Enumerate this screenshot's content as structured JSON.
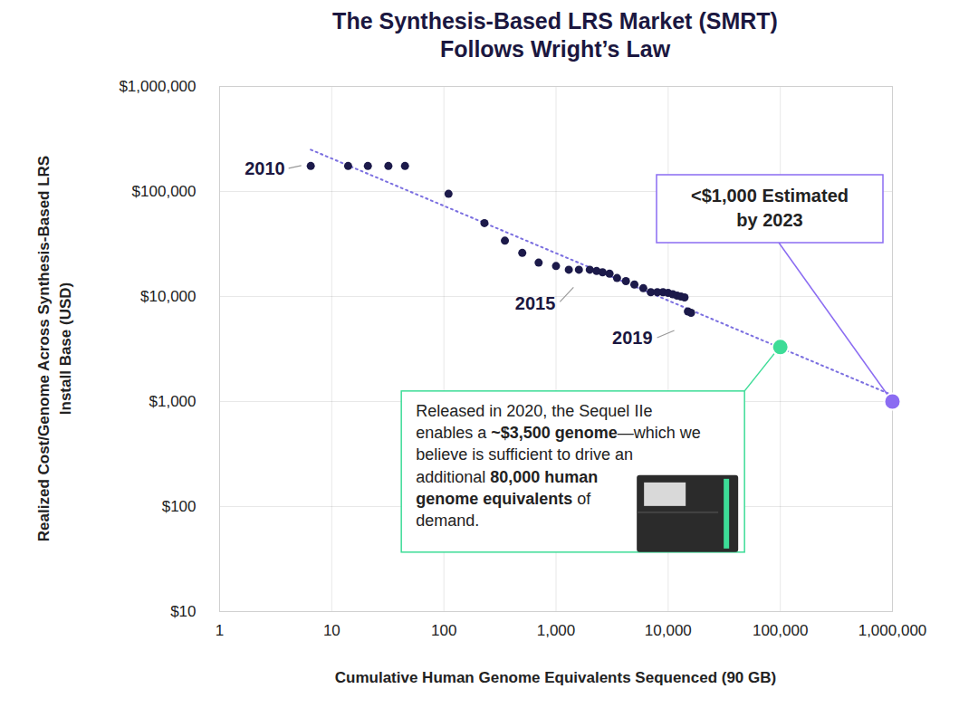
{
  "chart_data": {
    "type": "scatter",
    "title": "The Synthesis-Based LRS Market (SMRT) Follows Wright’s Law",
    "x_label": "Cumulative Human Genome Equivalents Sequenced (90 GB)",
    "y_label": "Realized Cost/Genome Across Synthesis-Based LRS Install Base (USD)",
    "log": true,
    "grid": true,
    "xlim": [
      1,
      1000000
    ],
    "ylim": [
      10,
      1000000
    ],
    "xticks": [
      1,
      10,
      100,
      {
        "value": 1000,
        "label": "1,000"
      },
      {
        "value": 10000,
        "label": "10,000"
      },
      {
        "value": 100000,
        "label": "100,000"
      },
      {
        "value": 1000000,
        "label": "1,000,000"
      }
    ],
    "yticks": [
      {
        "value": 10,
        "label": "$10"
      },
      {
        "value": 100,
        "label": "$100"
      },
      {
        "value": 1000,
        "label": "$1,000"
      },
      {
        "value": 10000,
        "label": "$10,000"
      },
      {
        "value": 100000,
        "label": "$100,000"
      },
      {
        "value": 1000000,
        "label": "$1,000,000"
      }
    ],
    "series": [
      {
        "type": "line",
        "line_style": "dotted",
        "color": "#7b6fe0",
        "x": [
          6.5,
          1000000
        ],
        "values": [
          250000,
          1150
        ]
      },
      {
        "type": "scatter",
        "marker": "circle",
        "color": "#1c1a4a",
        "x": [
          6.5,
          14,
          21,
          32,
          45,
          110,
          230,
          350,
          500,
          700,
          1000,
          1300,
          1600,
          2000,
          2300,
          2600,
          3000,
          3500,
          4200,
          5000,
          6000,
          7000,
          8000,
          9000,
          10000,
          11000,
          12000,
          13000,
          14000,
          15000,
          16000
        ],
        "values": [
          175000,
          175000,
          175000,
          175000,
          175000,
          95000,
          50000,
          34000,
          26000,
          21000,
          19500,
          18000,
          18000,
          18000,
          17500,
          17000,
          16500,
          15000,
          14000,
          13000,
          12000,
          11000,
          11000,
          11000,
          10800,
          10500,
          10200,
          10000,
          9800,
          7200,
          7000
        ]
      },
      {
        "type": "scatter",
        "marker": "circle",
        "color": "#3ddc97",
        "x": [
          100000
        ],
        "values": [
          3300
        ]
      },
      {
        "type": "scatter",
        "marker": "circle",
        "color": "#8b6cf2",
        "x": [
          1000000
        ],
        "values": [
          1000
        ]
      }
    ],
    "annotations": [
      {
        "text": "2010",
        "x": 6.5,
        "y": 175000
      },
      {
        "text": "2015",
        "x": 1500,
        "y": 18000
      },
      {
        "text": "2019",
        "x": 16000,
        "y": 7000
      },
      {
        "text": "<$1,000 Estimated by 2023",
        "x": 1000000,
        "y": 1000
      },
      {
        "text": [
          "Released in 2020, the Sequel IIe enables a ",
          "~$3,500 genome",
          "—which we believe is sufficient to drive an additional ",
          "80,000 human genome equivalents",
          " of demand."
        ],
        "x": 100000,
        "y": 3300
      }
    ]
  }
}
